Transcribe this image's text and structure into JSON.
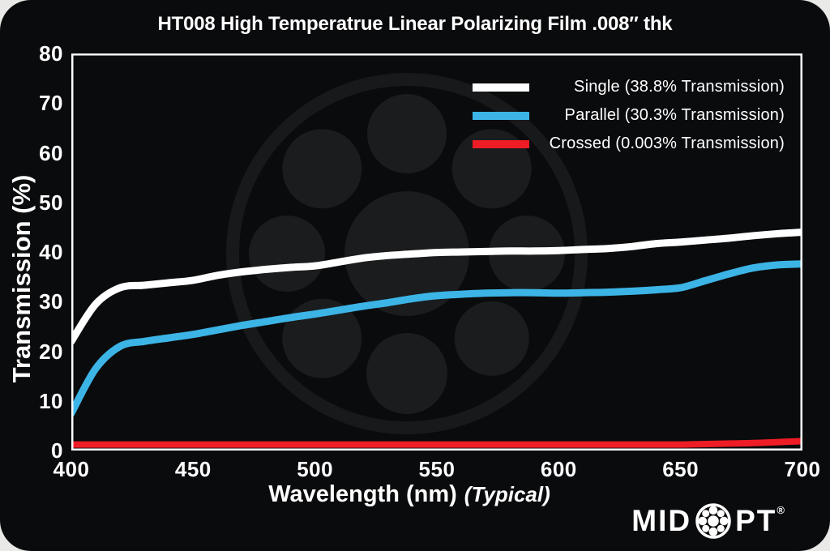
{
  "page": {
    "outer_bg": "#e9e9e7",
    "card_bg": "#0a0b0d"
  },
  "title": "HT008 High Temperatrue Linear Polarizing Film .008″ thk",
  "axes": {
    "y_label": "Transmission (%)",
    "y_ticks": [
      0,
      10,
      20,
      30,
      40,
      50,
      60,
      70,
      80
    ],
    "x_ticks": [
      400,
      450,
      500,
      550,
      600,
      650,
      700
    ],
    "x_label": "Wavelength (nm)",
    "x_label_suffix": "(Typical)"
  },
  "legend": [
    {
      "label": "Single (38.8% Transmission)",
      "color": "#ffffff"
    },
    {
      "label": "Parallel (30.3% Transmission)",
      "color": "#3cb4e5"
    },
    {
      "label": "Crossed (0.003% Transmission)",
      "color": "#ee1c25"
    }
  ],
  "logo": {
    "prefix": "MID",
    "suffix": "PT",
    "reg": "®"
  },
  "chart_data": {
    "type": "line",
    "title": "HT008 High Temperatrue Linear Polarizing Film .008″ thk",
    "xlabel": "Wavelength (nm) (Typical)",
    "ylabel": "Transmission (%)",
    "xlim": [
      400,
      700
    ],
    "ylim": [
      0,
      80
    ],
    "grid": false,
    "legend_position": "top-right",
    "plot_background": "black",
    "x": [
      400,
      410,
      420,
      430,
      440,
      450,
      460,
      470,
      480,
      490,
      500,
      510,
      520,
      530,
      540,
      550,
      560,
      570,
      580,
      590,
      600,
      610,
      620,
      630,
      640,
      650,
      660,
      670,
      680,
      690,
      700
    ],
    "series": [
      {
        "name": "Single (38.8% Transmission)",
        "color": "#ffffff",
        "values": [
          22,
          29.5,
          32.8,
          33.3,
          33.8,
          34.3,
          35.3,
          36.0,
          36.5,
          36.9,
          37.2,
          38.0,
          38.8,
          39.3,
          39.6,
          39.9,
          40.0,
          40.1,
          40.2,
          40.2,
          40.3,
          40.5,
          40.7,
          41.1,
          41.7,
          42.0,
          42.4,
          42.8,
          43.3,
          43.7,
          44.0
        ]
      },
      {
        "name": "Parallel (30.3% Transmission)",
        "color": "#3cb4e5",
        "values": [
          7.5,
          16.5,
          21.0,
          22.0,
          22.7,
          23.4,
          24.3,
          25.2,
          26.0,
          26.8,
          27.5,
          28.3,
          29.1,
          29.8,
          30.6,
          31.2,
          31.5,
          31.7,
          31.8,
          31.8,
          31.7,
          31.8,
          31.9,
          32.1,
          32.4,
          32.8,
          34.2,
          35.6,
          36.8,
          37.4,
          37.6
        ]
      },
      {
        "name": "Crossed (0.003% Transmission)",
        "color": "#ee1c25",
        "values": [
          1.2,
          1.2,
          1.2,
          1.2,
          1.2,
          1.2,
          1.2,
          1.2,
          1.2,
          1.2,
          1.2,
          1.2,
          1.2,
          1.2,
          1.2,
          1.2,
          1.2,
          1.2,
          1.2,
          1.2,
          1.2,
          1.2,
          1.2,
          1.2,
          1.2,
          1.2,
          1.3,
          1.4,
          1.5,
          1.7,
          1.9
        ]
      }
    ]
  }
}
